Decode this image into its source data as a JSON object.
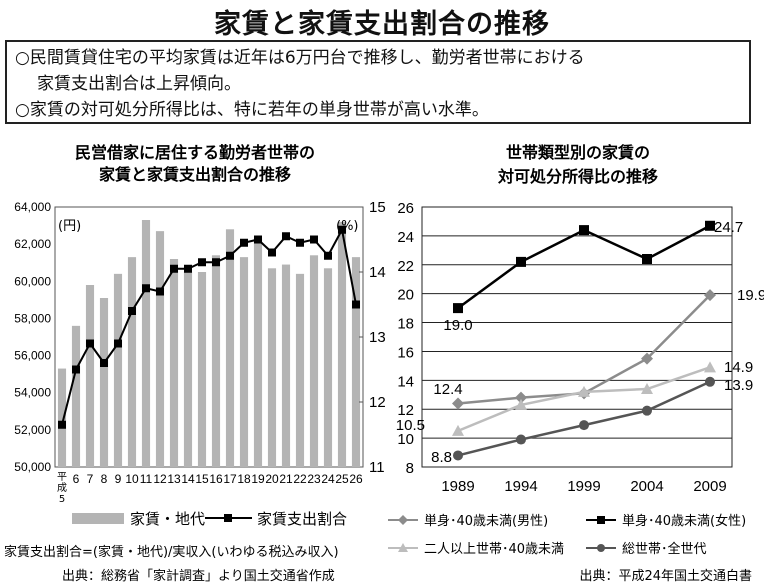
{
  "title": "家賃と家賃支出割合の推移",
  "summary": {
    "line1": "○民間賃貸住宅の平均家賃は近年は6万円台で推移し、勤労者世帯における",
    "line1b": "家賃支出割合は上昇傾向。",
    "line2": "○家賃の対可処分所得比は、特に若年の単身世帯が高い水準。"
  },
  "left_note": "家賃支出割合=(家賃・地代)/実収入(いわゆる税込み収入)",
  "left_source": "出典：総務省「家計調査」より国土交通省作成",
  "right_source": "出典：平成24年国土交通白書",
  "chart_data": [
    {
      "type": "bar",
      "title_line1": "民営借家に居住する勤労者世帯の",
      "title_line2": "家賃と家賃支出割合の推移",
      "y_unit": "(円)",
      "y2_unit": "(%)",
      "categories": [
        "平成5",
        "6",
        "7",
        "8",
        "9",
        "10",
        "11",
        "12",
        "13",
        "14",
        "15",
        "16",
        "17",
        "18",
        "19",
        "20",
        "21",
        "22",
        "23",
        "24",
        "25",
        "26"
      ],
      "yticks": [
        "64,000",
        "62,000",
        "60,000",
        "58,000",
        "56,000",
        "54,000",
        "52,000",
        "50,000"
      ],
      "y2ticks": [
        "15",
        "14",
        "13",
        "12",
        "11"
      ],
      "ylim": [
        50000,
        64000
      ],
      "y2lim": [
        11,
        15
      ],
      "series": [
        {
          "name": "家賃・地代",
          "kind": "bar",
          "color": "#b4b4b4",
          "values": [
            55300,
            57600,
            59800,
            59100,
            60400,
            61300,
            63300,
            62700,
            61200,
            60500,
            60500,
            61400,
            62800,
            61300,
            62300,
            60700,
            60900,
            60400,
            61400,
            60700,
            63200,
            61300
          ]
        },
        {
          "name": "家賃支出割合",
          "kind": "line",
          "color": "#000000",
          "values": [
            11.65,
            12.5,
            12.9,
            12.6,
            12.9,
            13.4,
            13.75,
            13.7,
            14.05,
            14.05,
            14.15,
            14.15,
            14.25,
            14.45,
            14.5,
            14.3,
            14.55,
            14.45,
            14.5,
            14.25,
            14.65,
            13.5
          ]
        }
      ]
    },
    {
      "type": "line",
      "title_line1": "世帯類型別の家賃の",
      "title_line2": "対可処分所得比の推移",
      "categories": [
        "1989",
        "1994",
        "1999",
        "2004",
        "2009"
      ],
      "yticks": [
        "26",
        "24",
        "22",
        "20",
        "18",
        "16",
        "14",
        "12",
        "10",
        "8"
      ],
      "ylim": [
        8,
        26
      ],
      "series": [
        {
          "name": "単身･40歳未満(男性)",
          "marker": "diamond",
          "color": "#8c8c8c",
          "values": [
            12.4,
            12.8,
            13.1,
            15.5,
            19.9
          ]
        },
        {
          "name": "単身･40歳未満(女性)",
          "marker": "square",
          "color": "#000000",
          "values": [
            19.0,
            22.2,
            24.4,
            22.4,
            24.7
          ]
        },
        {
          "name": "二人以上世帯･40歳未満",
          "marker": "triangle",
          "color": "#bdbdbd",
          "values": [
            10.5,
            12.3,
            13.2,
            13.4,
            14.9
          ]
        },
        {
          "name": "総世帯･全世代",
          "marker": "circle",
          "color": "#555555",
          "values": [
            8.8,
            9.9,
            10.9,
            11.9,
            13.9
          ]
        }
      ],
      "data_labels": {
        "s1_first": "12.4",
        "s1_last": "19.9",
        "s2_first": "19.0",
        "s2_last": "24.7",
        "s3_first": "10.5",
        "s3_last": "14.9",
        "s4_first": "8.8",
        "s4_last": "13.9"
      }
    }
  ]
}
